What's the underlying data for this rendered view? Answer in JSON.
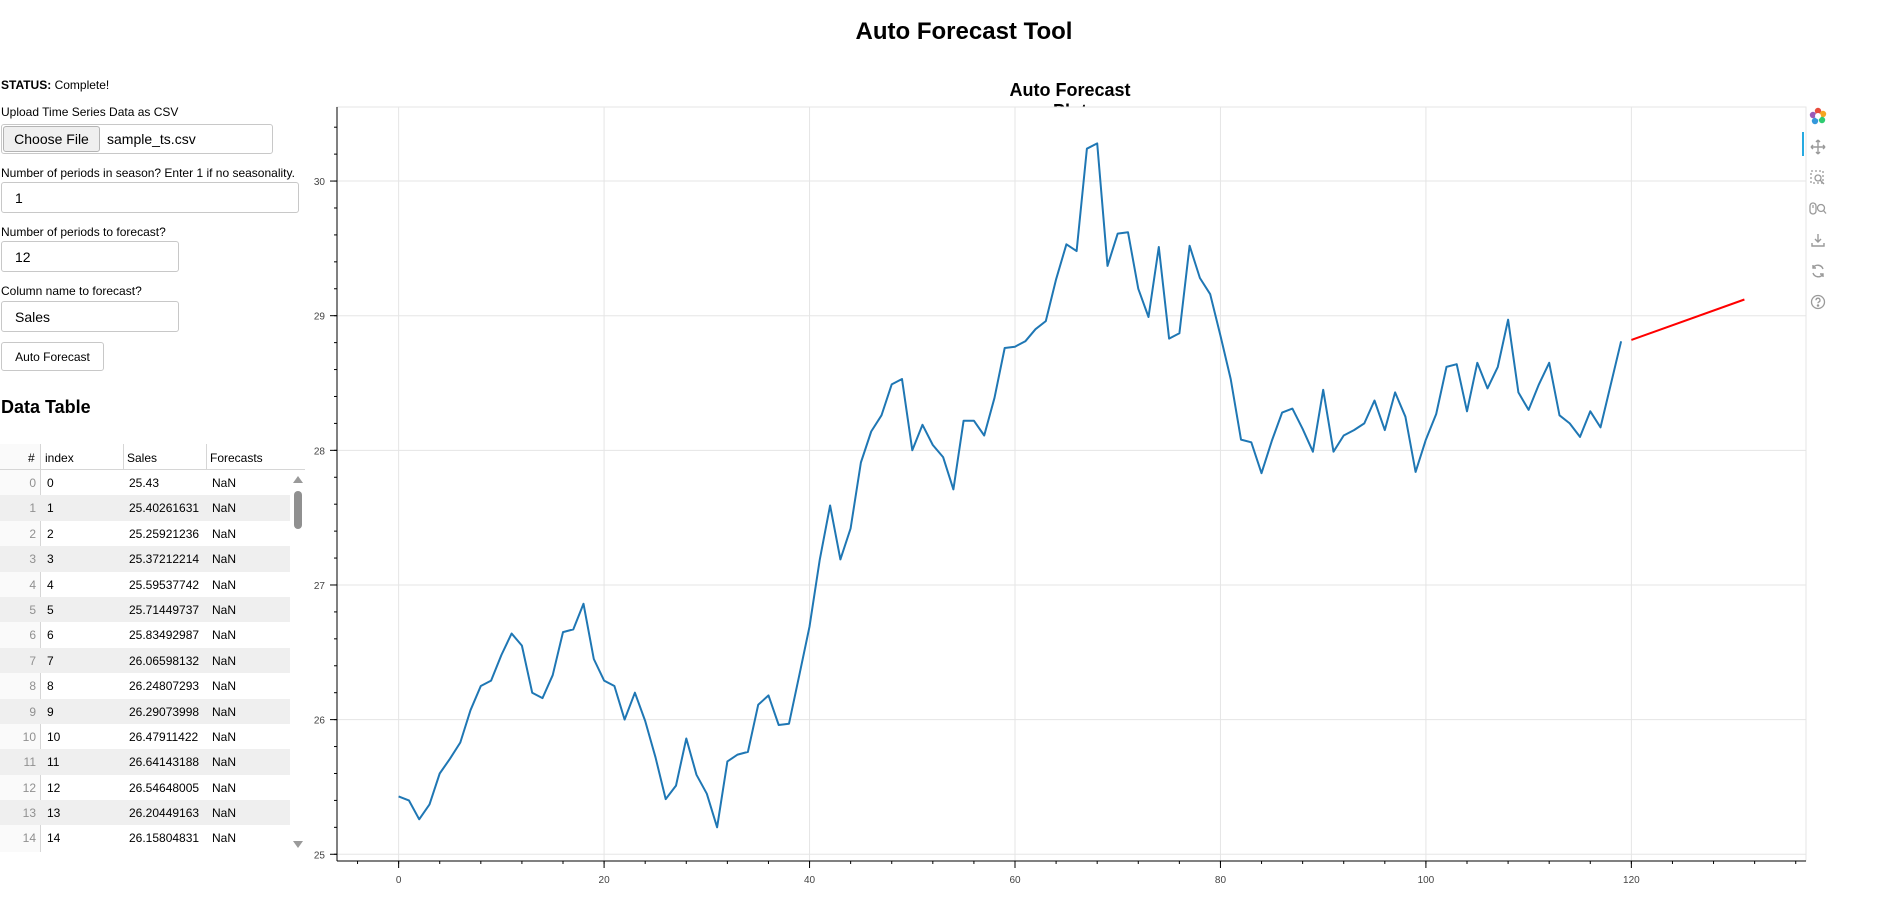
{
  "app": {
    "title": "Auto Forecast Tool"
  },
  "status": {
    "label": "STATUS:",
    "value": "Complete!"
  },
  "form": {
    "upload_label": "Upload Time Series Data as CSV",
    "choose_file_label": "Choose File",
    "file_name": "sample_ts.csv",
    "season_label": "Number of periods in season? Enter 1 if no seasonality.",
    "season_value": "1",
    "forecast_periods_label": "Number of periods to forecast?",
    "forecast_periods_value": "12",
    "column_label": "Column name to forecast?",
    "column_value": "Sales",
    "run_button_label": "Auto Forecast"
  },
  "table": {
    "title": "Data Table",
    "columns": [
      "#",
      "index",
      "Sales",
      "Forecasts"
    ],
    "rows": [
      [
        "0",
        "0",
        "25.43",
        "NaN"
      ],
      [
        "1",
        "1",
        "25.40261631",
        "NaN"
      ],
      [
        "2",
        "2",
        "25.25921236",
        "NaN"
      ],
      [
        "3",
        "3",
        "25.37212214",
        "NaN"
      ],
      [
        "4",
        "4",
        "25.59537742",
        "NaN"
      ],
      [
        "5",
        "5",
        "25.71449737",
        "NaN"
      ],
      [
        "6",
        "6",
        "25.83492987",
        "NaN"
      ],
      [
        "7",
        "7",
        "26.06598132",
        "NaN"
      ],
      [
        "8",
        "8",
        "26.24807293",
        "NaN"
      ],
      [
        "9",
        "9",
        "26.29073998",
        "NaN"
      ],
      [
        "10",
        "10",
        "26.47911422",
        "NaN"
      ],
      [
        "11",
        "11",
        "26.64143188",
        "NaN"
      ],
      [
        "12",
        "12",
        "26.54648005",
        "NaN"
      ],
      [
        "13",
        "13",
        "26.20449163",
        "NaN"
      ],
      [
        "14",
        "14",
        "26.15804831",
        "NaN"
      ]
    ]
  },
  "toolbar": {
    "tools": [
      "bokeh-logo-icon",
      "pan-icon",
      "box-zoom-icon",
      "wheel-zoom-icon",
      "save-icon",
      "reset-icon",
      "help-icon"
    ]
  },
  "chart_data": {
    "type": "line",
    "title": "Auto Forecast Plot",
    "xlim": [
      -6,
      137
    ],
    "ylim": [
      24.95,
      30.55
    ],
    "x_ticks": [
      0,
      20,
      40,
      60,
      80,
      100,
      120
    ],
    "y_ticks": [
      25,
      26,
      27,
      28,
      29,
      30
    ],
    "grid": true,
    "colors": {
      "actual": "#1f77b4",
      "forecast": "#ff0000"
    },
    "series": [
      {
        "x_start": 0,
        "values": [
          25.43,
          25.4,
          25.26,
          25.37,
          25.6,
          25.71,
          25.83,
          26.07,
          26.25,
          26.29,
          26.48,
          26.64,
          26.55,
          26.2,
          26.16,
          26.33,
          26.65,
          26.67,
          26.86,
          26.45,
          26.29,
          26.25,
          26.0,
          26.2,
          25.99,
          25.72,
          25.41,
          25.51,
          25.86,
          25.59,
          25.45,
          25.2,
          25.69,
          25.74,
          25.76,
          26.11,
          26.18,
          25.96,
          25.97,
          26.33,
          26.69,
          27.19,
          27.59,
          27.19,
          27.42,
          27.91,
          28.14,
          28.26,
          28.49,
          28.53,
          28.0,
          28.19,
          28.04,
          27.95,
          27.71,
          28.22,
          28.22,
          28.11,
          28.39,
          28.76,
          28.77,
          28.81,
          28.9,
          28.96,
          29.27,
          29.53,
          29.48,
          30.24,
          30.28,
          29.37,
          29.61,
          29.62,
          29.2,
          28.99,
          29.51,
          28.83,
          28.87,
          29.52,
          29.28,
          29.16,
          28.85,
          28.53,
          28.08,
          28.06,
          27.83,
          28.07,
          28.28,
          28.31,
          28.16,
          27.99,
          28.45,
          27.99,
          28.11,
          28.15,
          28.2,
          28.37,
          28.15,
          28.43,
          28.25,
          27.84,
          28.08,
          28.27,
          28.62,
          28.64,
          28.29,
          28.65,
          28.46,
          28.62,
          28.97,
          28.43,
          28.3,
          28.49,
          28.65,
          28.26,
          28.2,
          28.1,
          28.29,
          28.17,
          28.49,
          28.81
        ]
      },
      {
        "x": [
          120,
          131
        ],
        "values": [
          28.82,
          29.12
        ]
      }
    ]
  }
}
